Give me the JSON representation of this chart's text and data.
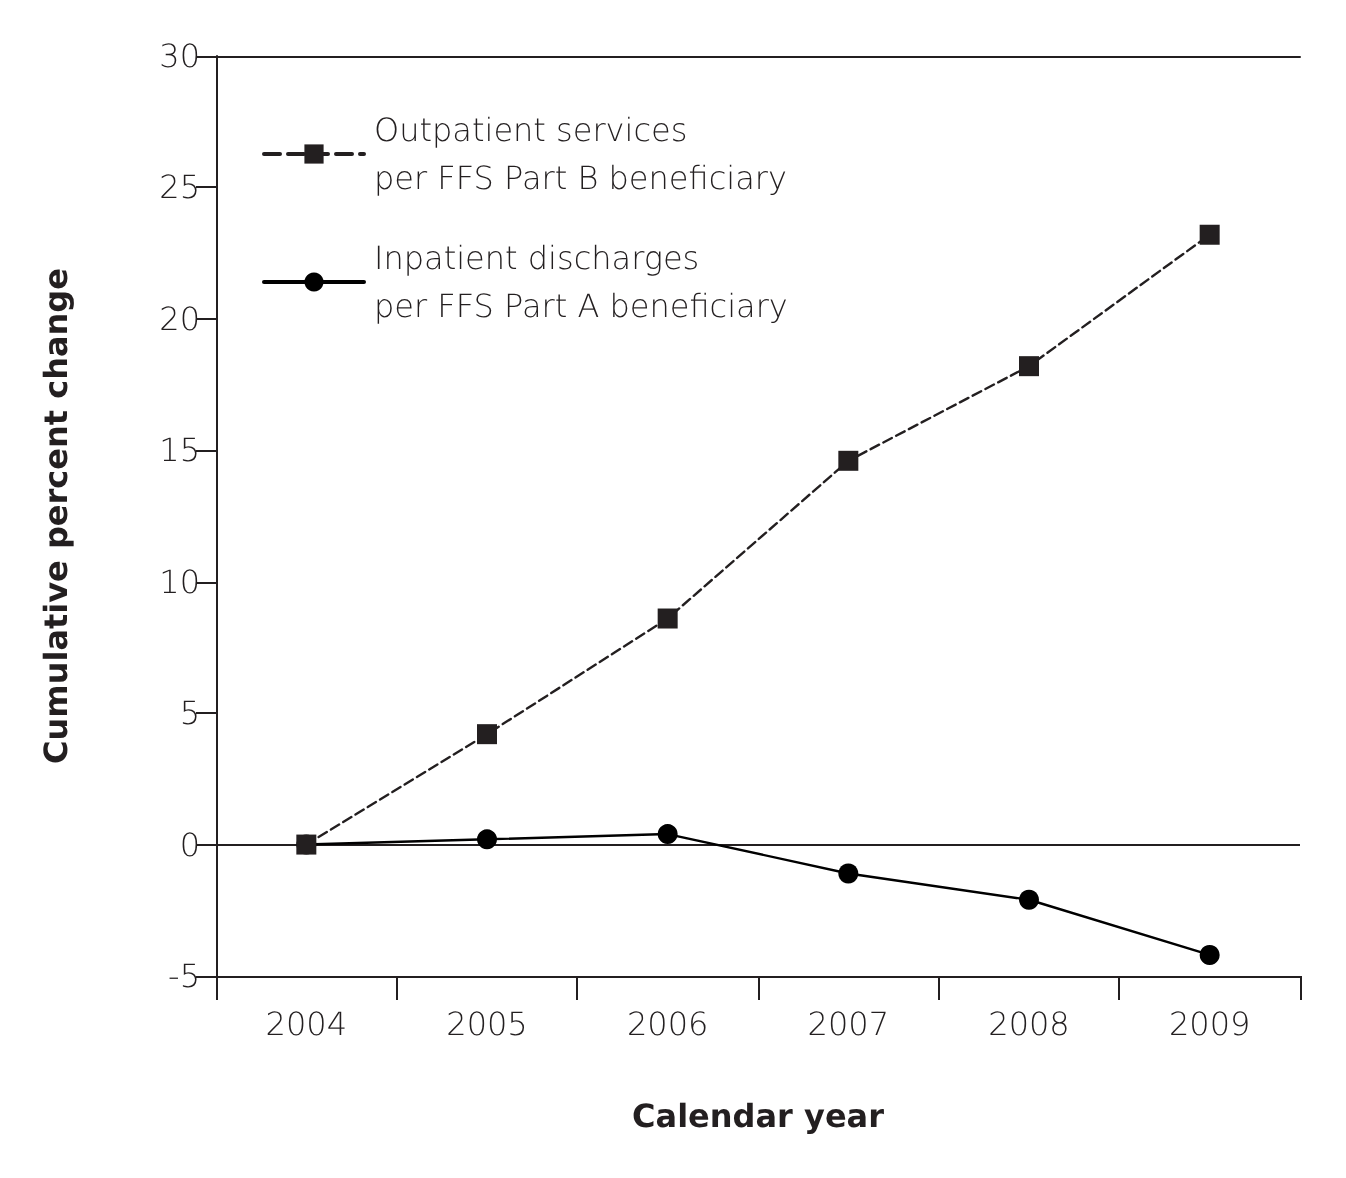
{
  "chart_data": {
    "type": "line",
    "xlabel": "Calendar year",
    "ylabel": "Cumulative percent change",
    "categories": [
      "2004",
      "2005",
      "2006",
      "2007",
      "2008",
      "2009"
    ],
    "series": [
      {
        "name": "Outpatient services\nper FFS Part B beneficiary",
        "color": "#231f20",
        "marker": "square",
        "line_style": "dashed",
        "values": [
          0,
          4.2,
          8.6,
          14.6,
          18.2,
          23.2
        ]
      },
      {
        "name": "Inpatient discharges\nper FFS Part A beneficiary",
        "color": "#000000",
        "marker": "circle",
        "line_style": "solid",
        "values": [
          0,
          0.2,
          0.4,
          -1.1,
          -2.1,
          -4.2
        ]
      }
    ],
    "ylim": [
      -5,
      30
    ],
    "yticks": [
      -5,
      0,
      5,
      10,
      15,
      20,
      25,
      30
    ],
    "ref_lines": [
      {
        "axis": "y",
        "value": 0,
        "color": "#231f20",
        "line_style": "solid"
      }
    ],
    "grid": false,
    "legend": "top left"
  }
}
